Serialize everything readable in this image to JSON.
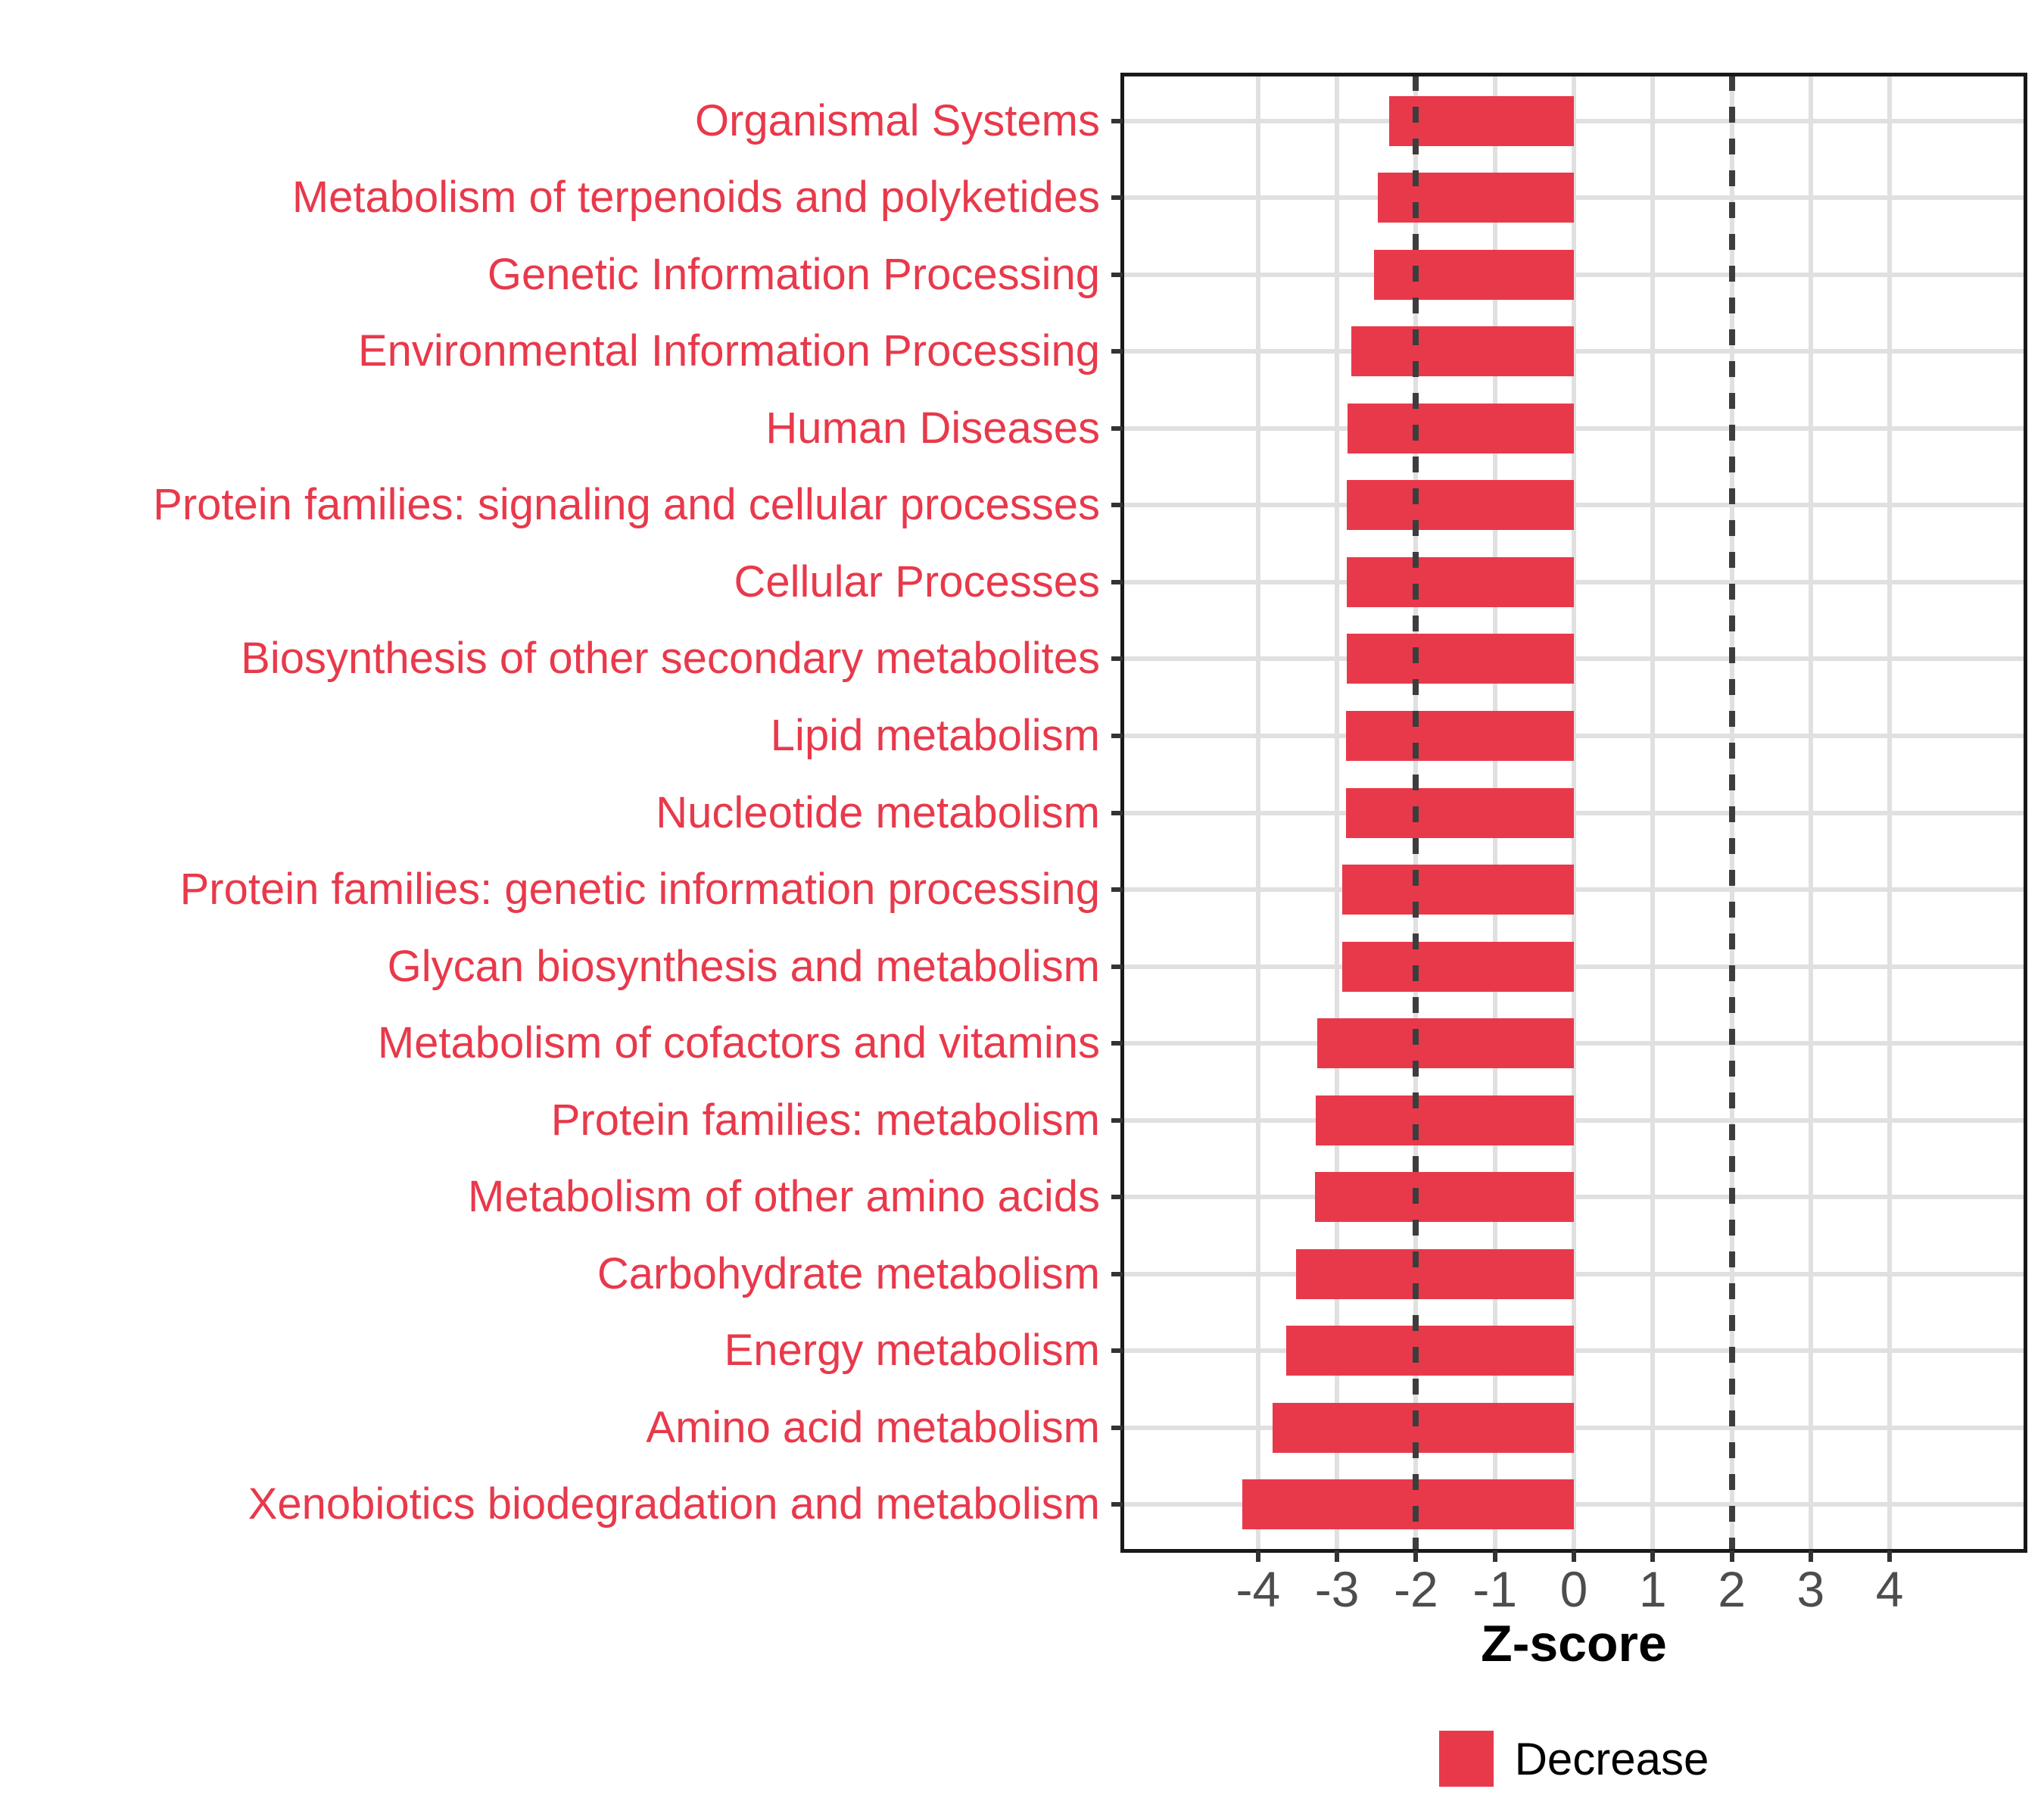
{
  "chart_data": {
    "type": "bar",
    "orientation": "horizontal",
    "title": "",
    "xlabel": "Z-score",
    "ylabel": "",
    "categories": [
      "Organismal Systems",
      "Metabolism of terpenoids and polyketides",
      "Genetic Information Processing",
      "Environmental Information Processing",
      "Human Diseases",
      "Protein families: signaling and cellular processes",
      "Cellular Processes",
      "Biosynthesis of other secondary metabolites",
      "Lipid metabolism",
      "Nucleotide metabolism",
      "Protein families: genetic information processing",
      "Glycan biosynthesis and metabolism",
      "Metabolism of cofactors and vitamins",
      "Protein families: metabolism",
      "Metabolism of other amino acids",
      "Carbohydrate metabolism",
      "Energy metabolism",
      "Amino acid metabolism",
      "Xenobiotics biodegradation and metabolism"
    ],
    "series": [
      {
        "name": "Decrease",
        "color": "#E8394B",
        "values": [
          -2.34,
          -2.48,
          -2.53,
          -2.82,
          -2.87,
          -2.88,
          -2.88,
          -2.88,
          -2.89,
          -2.89,
          -2.93,
          -2.93,
          -3.25,
          -3.27,
          -3.28,
          -3.52,
          -3.64,
          -3.82,
          -4.2
        ]
      }
    ],
    "xlim": [
      -5.715,
      5.715
    ],
    "x_ticks": [
      -4,
      -3,
      -2,
      -1,
      0,
      1,
      2,
      3,
      4
    ],
    "reference_lines": [
      -2,
      2
    ],
    "grid": "major-vertical-and-category-horizontal",
    "legend_position": "bottom",
    "legend": [
      {
        "label": "Decrease",
        "color": "#E8394B"
      }
    ],
    "colors": {
      "bar": "#E8394B",
      "category_labels": "#E8394B",
      "tick_labels": "#4D4D4D",
      "axis_title": "#000000",
      "gridline": "#E0E0E0",
      "reference_line": "#3D3D3D",
      "panel_border": "#191919",
      "tick_marks": "#333333"
    }
  }
}
